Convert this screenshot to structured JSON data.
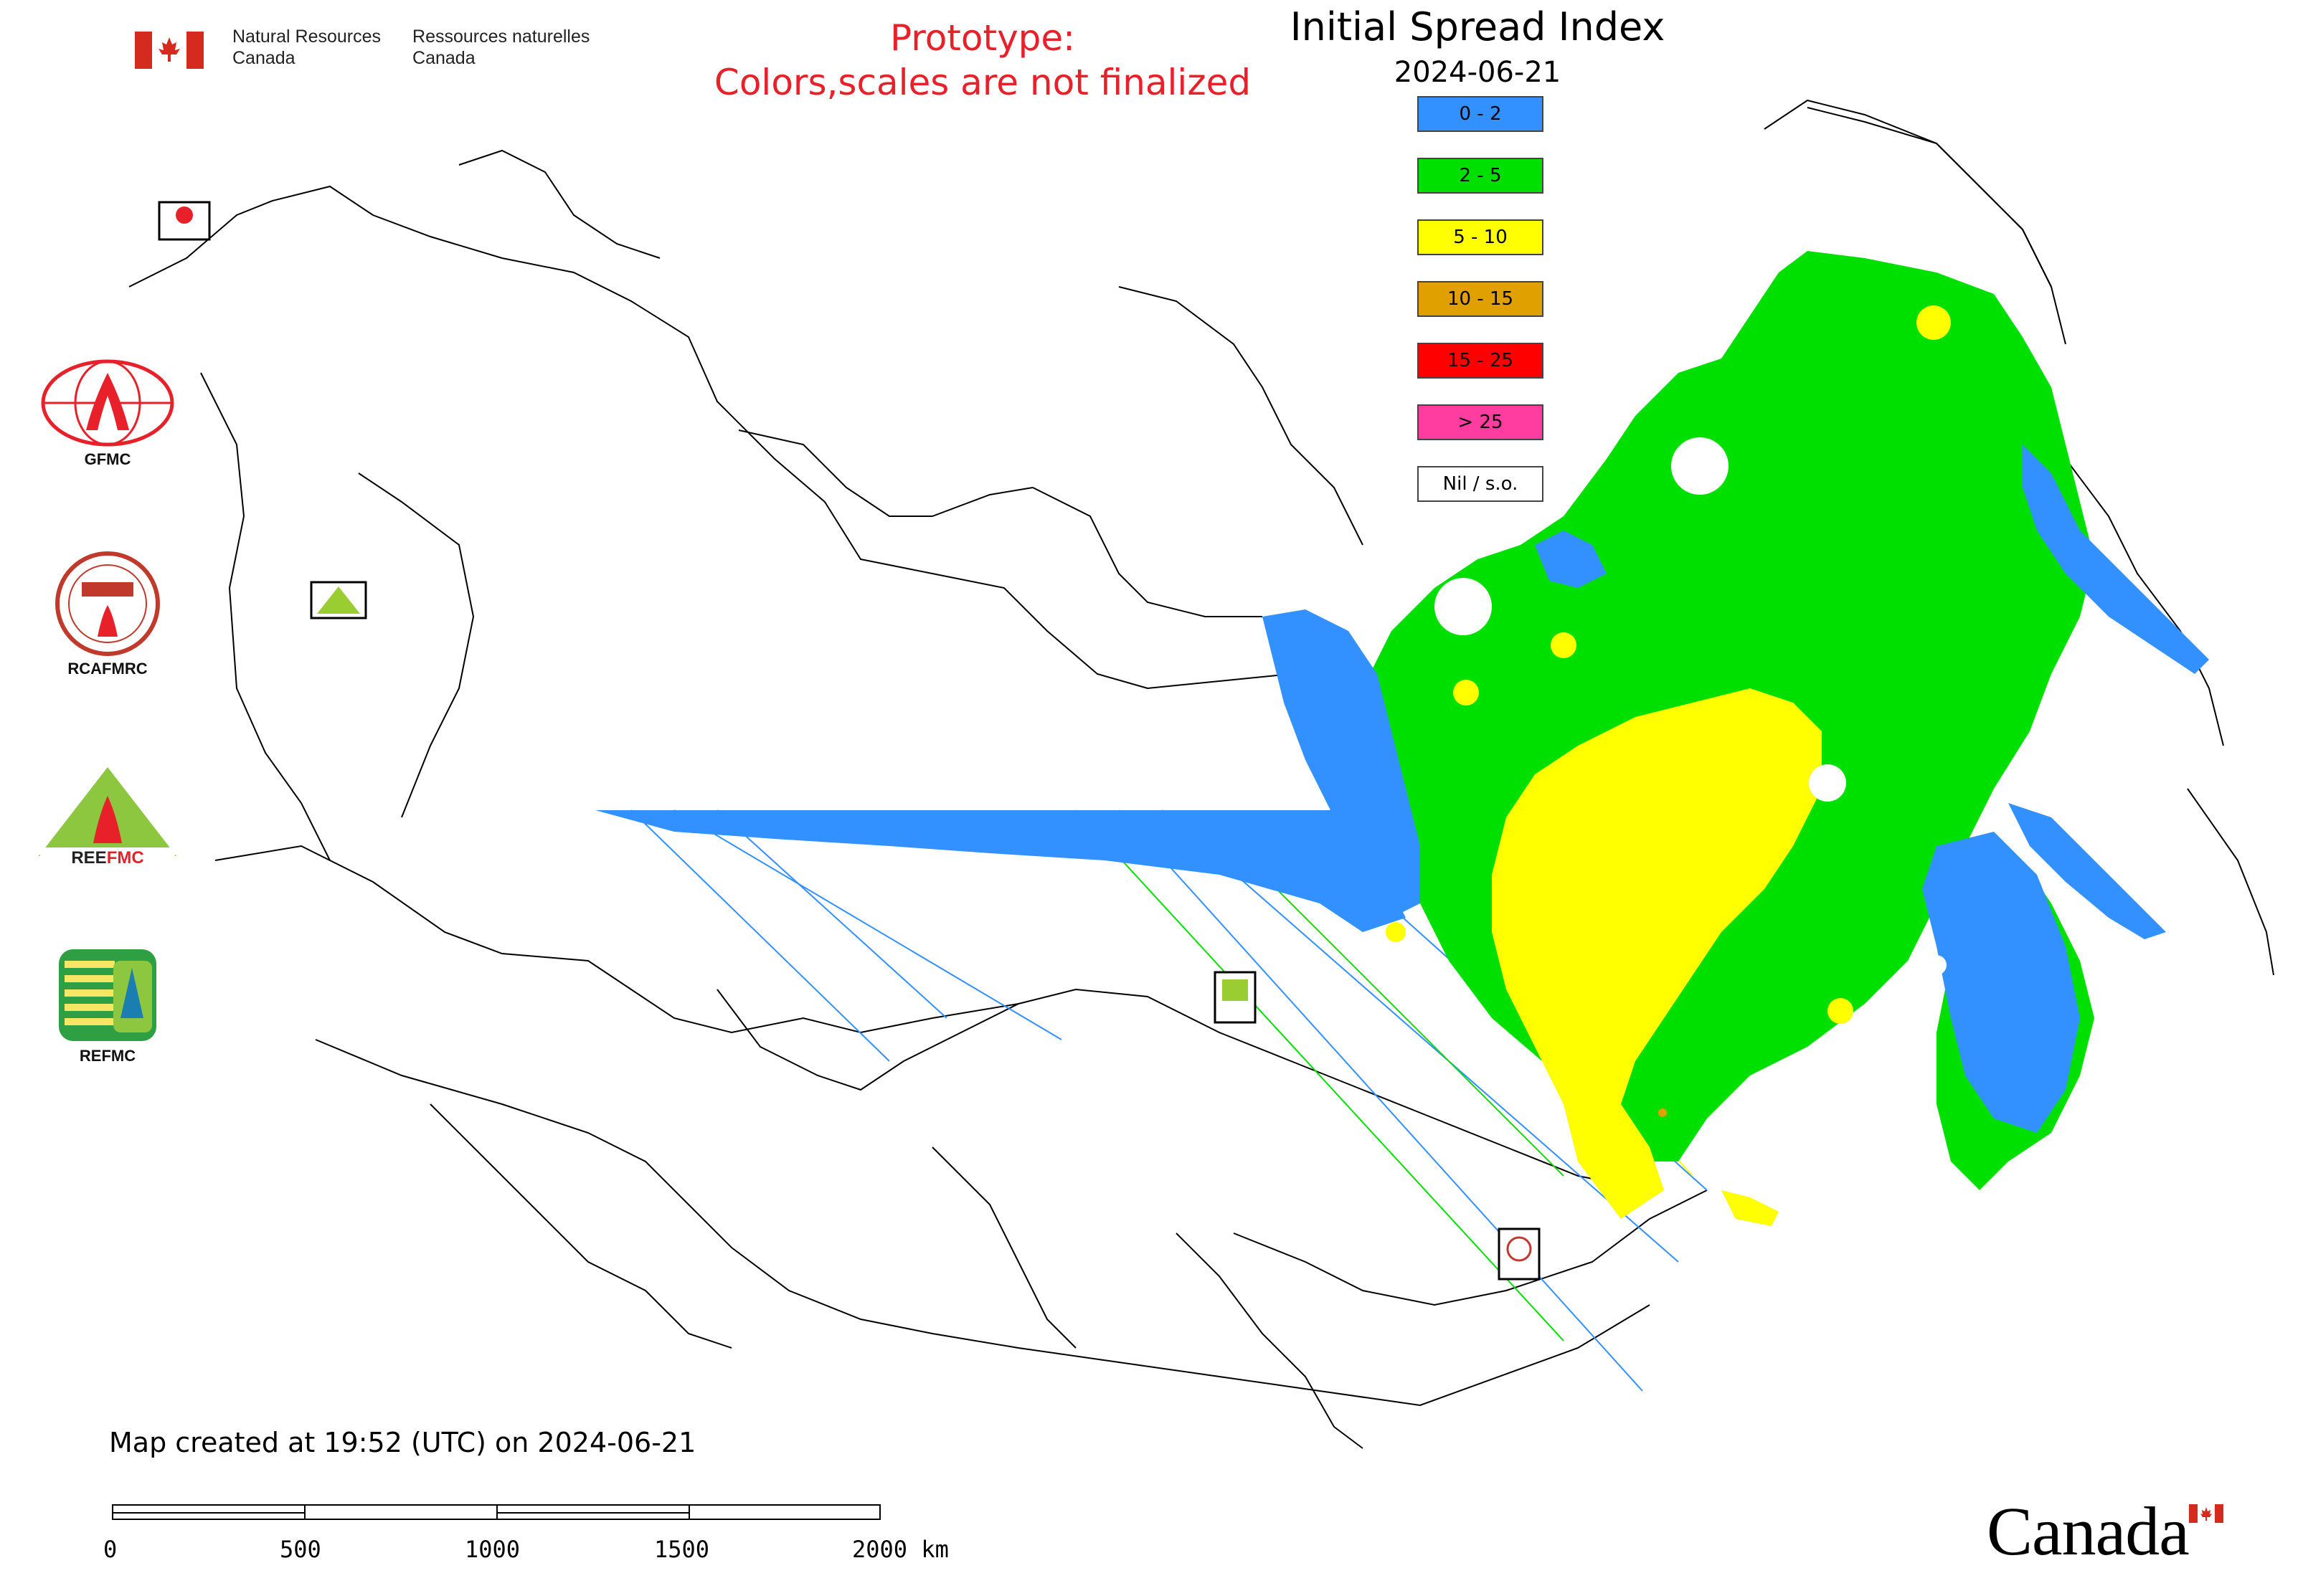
{
  "header": {
    "agency_en": [
      "Natural Resources",
      "Canada"
    ],
    "agency_fr": [
      "Ressources naturelles",
      "Canada"
    ]
  },
  "notice": {
    "line1": "Prototype:",
    "line2": "Colors,scales are not finalized",
    "color": "#e8202a"
  },
  "map": {
    "title": "Initial Spread Index",
    "date": "2024-06-21",
    "colors": {
      "nil": "#ffffff",
      "low": "#3391ff",
      "moderate": "#00e000",
      "high": "#ffff00",
      "very_high": "#e0a000",
      "extreme": "#ff0000",
      "severe": "#ff3da0",
      "boundary": "#000000"
    }
  },
  "legend": [
    {
      "label": "0 - 2",
      "color": "#3391ff"
    },
    {
      "label": "2 - 5",
      "color": "#00e000"
    },
    {
      "label": "5 - 10",
      "color": "#ffff00"
    },
    {
      "label": "10 - 15",
      "color": "#e0a000"
    },
    {
      "label": "15 - 25",
      "color": "#ff0000"
    },
    {
      "label": "> 25",
      "color": "#ff3da0"
    },
    {
      "label": "Nil / s.o.",
      "color": "#ffffff"
    }
  ],
  "sidebar_logos": [
    {
      "name": "GFMC",
      "icon": "gfmc-globe-flame-icon"
    },
    {
      "name": "RCAFMRC",
      "icon": "rcafmrc-seal-icon"
    },
    {
      "name": "REEFMC",
      "icon": "reefmc-triangle-icon"
    },
    {
      "name": "REFMC",
      "icon": "refmc-sigma-icon"
    }
  ],
  "footer": {
    "created": "Map created at 19:52 (UTC) on 2024-06-21",
    "scale_labels": [
      "0",
      "500",
      "1000",
      "1500",
      "2000 km"
    ],
    "wordmark": "Canada"
  }
}
